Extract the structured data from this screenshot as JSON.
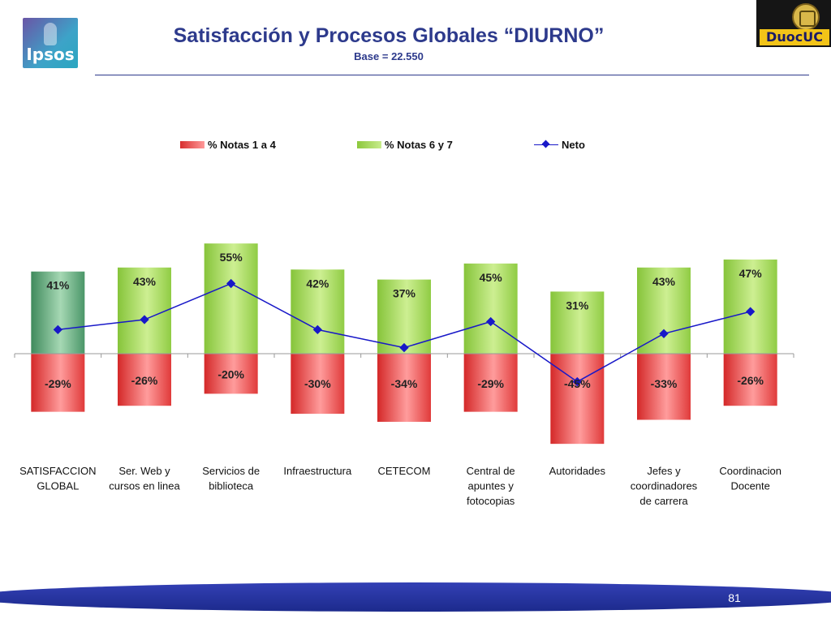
{
  "header": {
    "title": "Satisfacción y Procesos Globales “DIURNO”",
    "subtitle": "Base = 22.550",
    "ipsos_logo_text": "Ipsos",
    "duoc_logo_text": "DuocUC"
  },
  "legend": [
    {
      "label": "% Notas 1 a 4",
      "color": "#e53b3b"
    },
    {
      "label": "% Notas 6 y 7",
      "color": "#9cd24a"
    },
    {
      "label": "Neto",
      "color": "#1818c8"
    }
  ],
  "chart_data": {
    "type": "bar",
    "categories": [
      [
        "SATISFACCION",
        "GLOBAL"
      ],
      [
        "Ser. Web y",
        "cursos en linea"
      ],
      [
        "Servicios de",
        "biblioteca"
      ],
      [
        "Infraestructura"
      ],
      [
        "CETECOM"
      ],
      [
        "Central de",
        "apuntes y",
        "fotocopias"
      ],
      [
        "Autoridades"
      ],
      [
        "Jefes y",
        "coordinadores",
        "de carrera"
      ],
      [
        "Coordinacion",
        "Docente"
      ]
    ],
    "series": [
      {
        "name": "% Notas 1 a 4",
        "values": [
          -29,
          -26,
          -20,
          -30,
          -34,
          -29,
          -45,
          -33,
          -26
        ],
        "labels": [
          "-29%",
          "-26%",
          "-20%",
          "-30%",
          "-34%",
          "-29%",
          "-45%",
          "-33%",
          "-26%"
        ]
      },
      {
        "name": "% Notas 6 y 7",
        "values": [
          41,
          43,
          55,
          42,
          37,
          45,
          31,
          43,
          47
        ],
        "labels": [
          "41%",
          "43%",
          "55%",
          "42%",
          "37%",
          "45%",
          "31%",
          "43%",
          "47%"
        ]
      },
      {
        "name": "Neto",
        "values": [
          12,
          17,
          35,
          12,
          3,
          16,
          -14,
          10,
          21
        ]
      }
    ],
    "colors": {
      "negative": "#e53b3b",
      "positive": "#9cd24a",
      "first_positive": "#4f9a6c",
      "net": "#1818c8"
    },
    "ylim": [
      -50,
      60
    ],
    "grid": false
  },
  "footer": {
    "page_number": "81"
  }
}
